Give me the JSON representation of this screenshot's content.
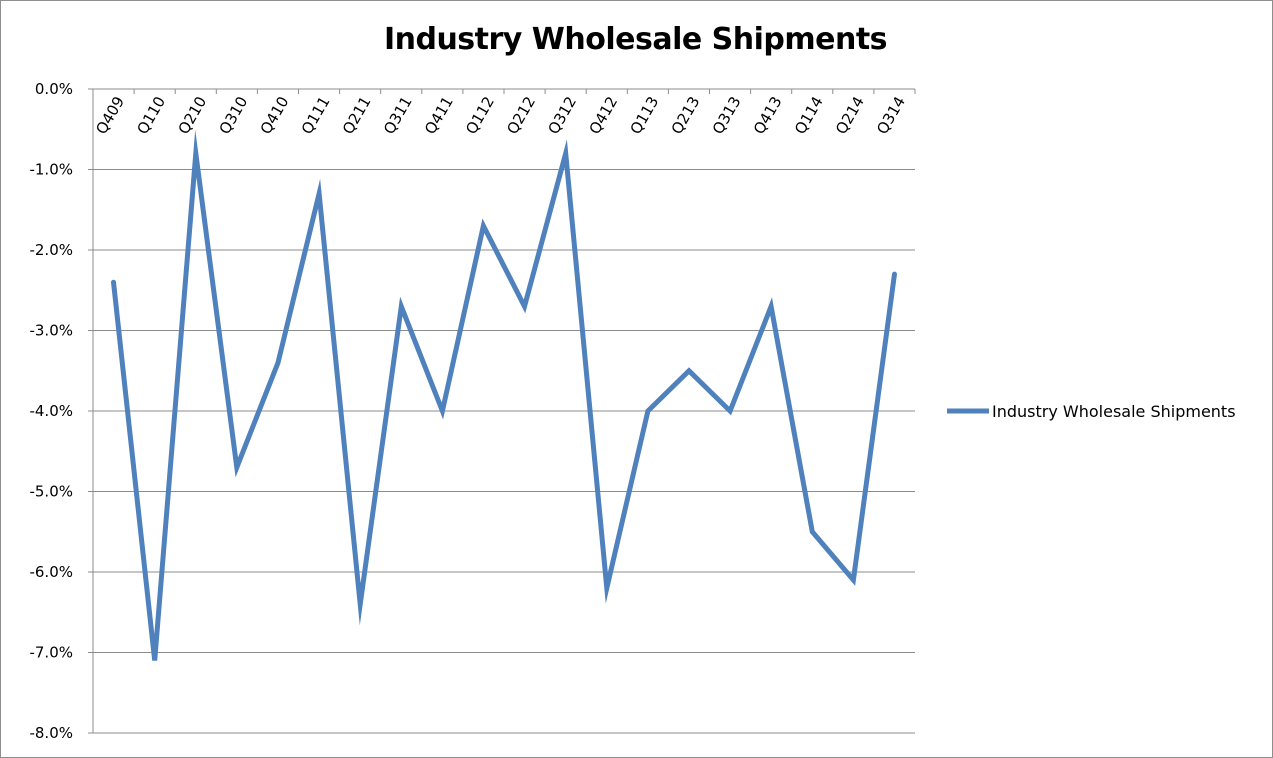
{
  "chart_data": {
    "type": "line",
    "title": "Industry Wholesale Shipments",
    "xlabel": "",
    "ylabel": "",
    "categories": [
      "Q409",
      "Q110",
      "Q210",
      "Q310",
      "Q410",
      "Q111",
      "Q211",
      "Q311",
      "Q411",
      "Q112",
      "Q212",
      "Q312",
      "Q412",
      "Q113",
      "Q213",
      "Q313",
      "Q413",
      "Q114",
      "Q214",
      "Q314"
    ],
    "series": [
      {
        "name": "Industry Wholesale Shipments",
        "color": "#4f81bd",
        "values": [
          -2.4,
          -7.1,
          -0.8,
          -4.7,
          -3.4,
          -1.3,
          -6.4,
          -2.7,
          -4.0,
          -1.7,
          -2.7,
          -0.8,
          -6.2,
          -4.0,
          -3.5,
          -4.0,
          -2.7,
          -5.5,
          -6.1,
          -2.3
        ]
      }
    ],
    "ylim": [
      -8.0,
      0.0
    ],
    "y_ticks": [
      "0.0%",
      "-1.0%",
      "-2.0%",
      "-3.0%",
      "-4.0%",
      "-5.0%",
      "-6.0%",
      "-7.0%",
      "-8.0%"
    ],
    "y_tick_values": [
      0,
      -1,
      -2,
      -3,
      -4,
      -5,
      -6,
      -7,
      -8
    ],
    "grid": true,
    "x_axis_position": "top",
    "x_tick_rotation": "rotated",
    "legend_position": "right"
  }
}
